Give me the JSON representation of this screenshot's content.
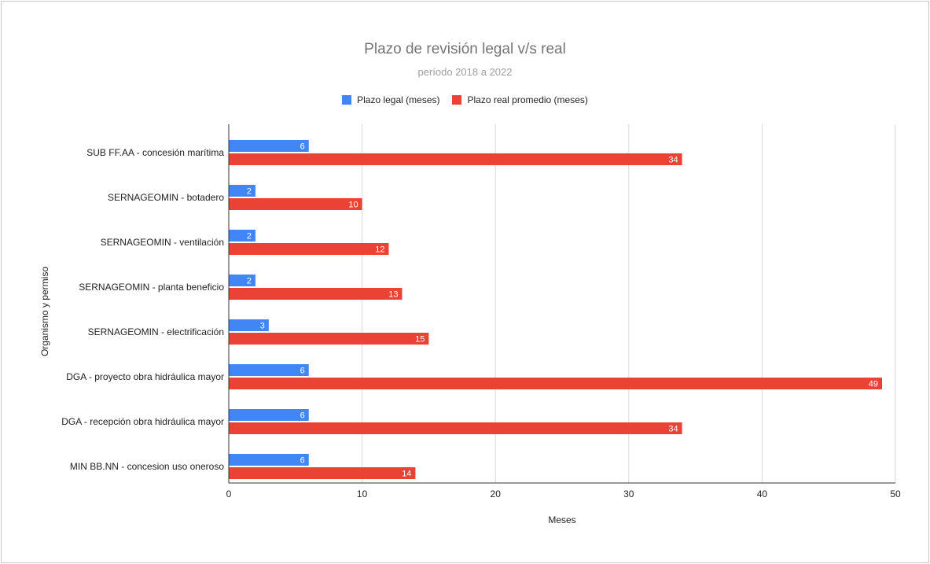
{
  "colors": {
    "legal": "#4285f4",
    "real": "#ea4335",
    "grid": "#d9d9d9",
    "axis": "#333333",
    "text": "#222222"
  },
  "chart_data": {
    "type": "bar",
    "orientation": "horizontal",
    "title": "Plazo de revisión legal v/s real",
    "subtitle": "período 2018 a 2022",
    "xlabel": "Meses",
    "ylabel": "Organismo y permiso",
    "xlim": [
      0,
      50
    ],
    "xticks": [
      0,
      10,
      20,
      30,
      40,
      50
    ],
    "grid": true,
    "legend_position": "top",
    "categories": [
      "SUB FF.AA - concesión marítima",
      "SERNAGEOMIN - botadero",
      "SERNAGEOMIN - ventilación",
      "SERNAGEOMIN - planta beneficio",
      "SERNAGEOMIN - electrificación",
      "DGA - proyecto obra hidráulica mayor",
      "DGA - recepción obra hidráulica mayor",
      "MIN BB.NN - concesion uso oneroso"
    ],
    "series": [
      {
        "name": "Plazo legal (meses)",
        "values": [
          6,
          2,
          2,
          2,
          3,
          6,
          6,
          6
        ]
      },
      {
        "name": "Plazo real promedio (meses)",
        "values": [
          34,
          10,
          12,
          13,
          15,
          49,
          34,
          14
        ]
      }
    ]
  }
}
